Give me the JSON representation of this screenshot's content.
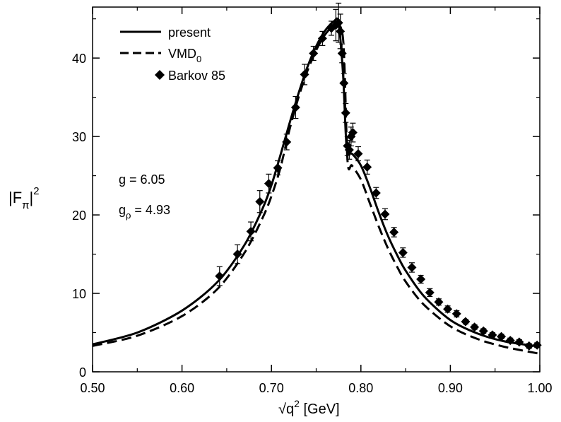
{
  "chart_data": {
    "type": "line",
    "xlabel_parts": {
      "radical": "√",
      "base": "q",
      "exponent": "2",
      "unit": " [GeV]"
    },
    "ylabel_parts": {
      "base": "|F",
      "subscript": "π",
      "close": "|",
      "exponent": "2"
    },
    "xlim": [
      0.5,
      1.0
    ],
    "ylim": [
      0,
      46.5
    ],
    "x_ticks": [
      0.5,
      0.6,
      0.7,
      0.8,
      0.9,
      1.0
    ],
    "x_tick_labels": [
      "0.50",
      "0.60",
      "0.70",
      "0.80",
      "0.90",
      "1.00"
    ],
    "y_ticks": [
      0,
      10,
      20,
      30,
      40
    ],
    "y_tick_labels": [
      "0",
      "10",
      "20",
      "30",
      "40"
    ],
    "grid": false,
    "legend_position": "top-left",
    "legend": {
      "present": "present",
      "vmd_base": "VMD",
      "vmd_sub": "0",
      "barkov": "Barkov 85"
    },
    "annotations": {
      "g_text": "g = 6.05",
      "gp_base": "g",
      "gp_sub": "ρ",
      "gp_value": " = 4.93"
    },
    "series": [
      {
        "name": "present",
        "style": "solid",
        "x": [
          0.5,
          0.55,
          0.6,
          0.64,
          0.67,
          0.69,
          0.7,
          0.71,
          0.72,
          0.73,
          0.74,
          0.75,
          0.76,
          0.77,
          0.775,
          0.78,
          0.783,
          0.785,
          0.79,
          0.8,
          0.81,
          0.82,
          0.83,
          0.84,
          0.85,
          0.87,
          0.9,
          0.93,
          0.96,
          1.0
        ],
        "y": [
          3.5,
          5.0,
          7.8,
          11.5,
          16.2,
          20.8,
          23.8,
          27.6,
          31.6,
          35.4,
          38.8,
          41.5,
          43.5,
          44.7,
          44.5,
          38.0,
          30.5,
          27.8,
          27.8,
          26.3,
          23.5,
          20.3,
          17.4,
          15.0,
          12.9,
          9.7,
          6.6,
          4.9,
          3.9,
          3.2
        ]
      },
      {
        "name": "VMD0",
        "style": "dashed",
        "x": [
          0.5,
          0.55,
          0.6,
          0.64,
          0.67,
          0.69,
          0.7,
          0.71,
          0.72,
          0.73,
          0.74,
          0.75,
          0.76,
          0.77,
          0.78,
          0.785,
          0.79,
          0.8,
          0.81,
          0.82,
          0.83,
          0.84,
          0.85,
          0.87,
          0.9,
          0.93,
          0.96,
          1.0
        ],
        "y": [
          3.3,
          4.6,
          7.1,
          10.6,
          15.2,
          19.6,
          22.4,
          26.0,
          30.8,
          34.9,
          38.3,
          41.0,
          43.0,
          44.0,
          42.5,
          27.0,
          26.3,
          24.5,
          21.5,
          18.5,
          15.8,
          13.5,
          11.5,
          8.6,
          5.8,
          4.2,
          3.2,
          2.3
        ]
      },
      {
        "name": "Barkov 85",
        "style": "markers",
        "x": [
          0.642,
          0.662,
          0.677,
          0.687,
          0.697,
          0.707,
          0.717,
          0.727,
          0.737,
          0.747,
          0.757,
          0.767,
          0.772,
          0.775,
          0.777,
          0.779,
          0.781,
          0.783,
          0.785,
          0.787,
          0.789,
          0.791,
          0.797,
          0.807,
          0.817,
          0.827,
          0.837,
          0.847,
          0.857,
          0.867,
          0.877,
          0.887,
          0.897,
          0.907,
          0.917,
          0.927,
          0.937,
          0.947,
          0.957,
          0.967,
          0.977,
          0.988,
          0.997
        ],
        "y": [
          12.2,
          15.0,
          17.9,
          21.7,
          24.0,
          26.0,
          29.3,
          33.7,
          37.9,
          40.6,
          42.5,
          43.8,
          44.2,
          44.5,
          43.4,
          40.6,
          36.8,
          33.0,
          28.8,
          28.3,
          30.0,
          30.5,
          27.8,
          26.1,
          22.8,
          20.1,
          17.8,
          15.2,
          13.3,
          11.8,
          10.1,
          8.9,
          8.0,
          7.4,
          6.4,
          5.7,
          5.2,
          4.7,
          4.5,
          4.0,
          3.8,
          3.3,
          3.4
        ],
        "err": [
          1.2,
          1.2,
          1.2,
          1.4,
          1.2,
          0.9,
          1.0,
          1.4,
          1.3,
          0.9,
          0.9,
          0.9,
          2.0,
          2.5,
          2.2,
          1.2,
          1.2,
          1.2,
          1.2,
          1.2,
          1.2,
          1.2,
          0.9,
          0.9,
          0.7,
          0.7,
          0.6,
          0.6,
          0.6,
          0.5,
          0.5,
          0.4,
          0.4,
          0.4,
          0.3,
          0.3,
          0.3,
          0.3,
          0.3,
          0.3,
          0.3,
          0.3,
          0.3
        ]
      }
    ]
  }
}
